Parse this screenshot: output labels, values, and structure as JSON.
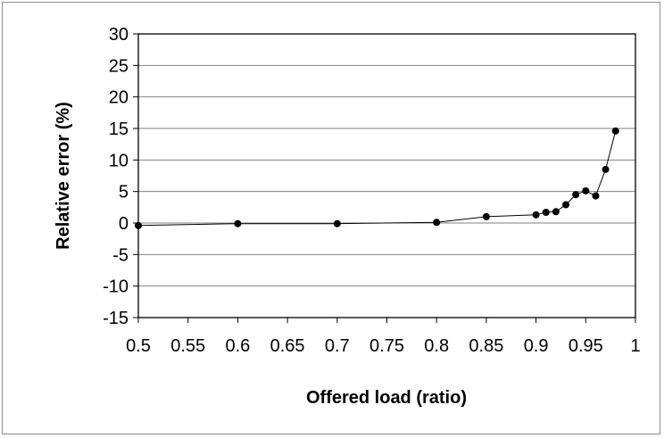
{
  "chart_data": {
    "type": "line",
    "title": "",
    "xlabel": "Offered load (ratio)",
    "ylabel": "Relative error (%)",
    "xlim": [
      0.5,
      1
    ],
    "ylim": [
      -15,
      30
    ],
    "x_ticks": [
      "0.5",
      "0.55",
      "0.6",
      "0.65",
      "0.7",
      "0.75",
      "0.8",
      "0.85",
      "0.9",
      "0.95",
      "1"
    ],
    "y_ticks": [
      "30",
      "25",
      "20",
      "15",
      "10",
      "5",
      "0",
      "-5",
      "-10",
      "-15"
    ],
    "grid": "horizontal",
    "legend": "none",
    "series": [
      {
        "x": [
          0.5,
          0.6,
          0.7,
          0.8,
          0.85,
          0.9,
          0.91,
          0.92,
          0.93,
          0.94,
          0.95,
          0.96,
          0.97,
          0.98
        ],
        "y": [
          -0.4,
          -0.1,
          -0.1,
          0.1,
          1.0,
          1.3,
          1.7,
          1.8,
          2.9,
          4.5,
          5.1,
          4.3,
          8.5,
          14.6
        ],
        "color": "#000000"
      }
    ]
  }
}
